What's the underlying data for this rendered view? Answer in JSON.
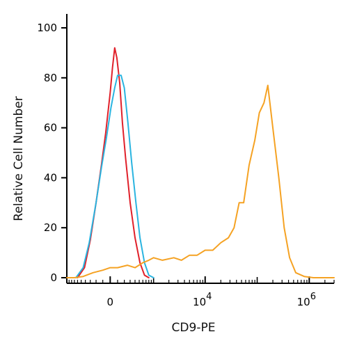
{
  "chart_data": {
    "type": "line",
    "title": "",
    "xlabel": "CD9-PE",
    "ylabel": "Relative Cell Number",
    "x_scale": "biexponential",
    "xlim": [
      -1000,
      3000000
    ],
    "ylim": [
      0,
      100
    ],
    "grid": false,
    "legend": "none",
    "y_ticks": [
      {
        "value": 0,
        "label": "0"
      },
      {
        "value": 20,
        "label": "20"
      },
      {
        "value": 40,
        "label": "40"
      },
      {
        "value": 60,
        "label": "60"
      },
      {
        "value": 80,
        "label": "80"
      },
      {
        "value": 100,
        "label": "100"
      }
    ],
    "x_ticks": [
      {
        "value": 0,
        "base": "0",
        "exp": ""
      },
      {
        "value": 10000,
        "base": "10",
        "exp": "4"
      },
      {
        "value": 1000000,
        "base": "10",
        "exp": "6"
      }
    ],
    "series": [
      {
        "color": "#e0202a",
        "x": [
          -600,
          -420,
          -300,
          -200,
          -120,
          -60,
          0,
          30,
          60,
          90,
          130,
          170,
          220,
          300,
          400,
          520,
          650,
          800
        ],
        "y": [
          0,
          4,
          15,
          30,
          45,
          58,
          74,
          84,
          92,
          88,
          78,
          62,
          48,
          30,
          16,
          6,
          1,
          0
        ]
      },
      {
        "color": "#2ab4e0",
        "x": [
          -650,
          -450,
          -320,
          -200,
          -120,
          -50,
          10,
          60,
          100,
          150,
          200,
          260,
          330,
          420,
          520,
          650,
          800,
          1000
        ],
        "y": [
          0,
          4,
          14,
          30,
          44,
          56,
          68,
          76,
          81,
          81,
          76,
          62,
          46,
          30,
          16,
          6,
          1,
          0
        ]
      },
      {
        "color": "#f5a223",
        "x": [
          -1000,
          -700,
          -450,
          -250,
          -100,
          0,
          100,
          250,
          400,
          600,
          800,
          1000,
          1500,
          2500,
          3500,
          5000,
          7000,
          10000,
          14000,
          20000,
          28000,
          36000,
          45000,
          55000,
          70000,
          90000,
          110000,
          135000,
          160000,
          200000,
          260000,
          330000,
          420000,
          550000,
          800000,
          1200000,
          2000000,
          3000000
        ],
        "y": [
          0,
          0,
          0.5,
          2,
          3,
          4,
          4,
          5,
          4,
          6,
          7,
          8,
          7,
          8,
          7,
          9,
          9,
          11,
          11,
          14,
          16,
          20,
          30,
          30,
          45,
          55,
          66,
          70,
          77,
          60,
          40,
          20,
          8,
          2,
          0.5,
          0,
          0,
          0
        ]
      }
    ]
  }
}
